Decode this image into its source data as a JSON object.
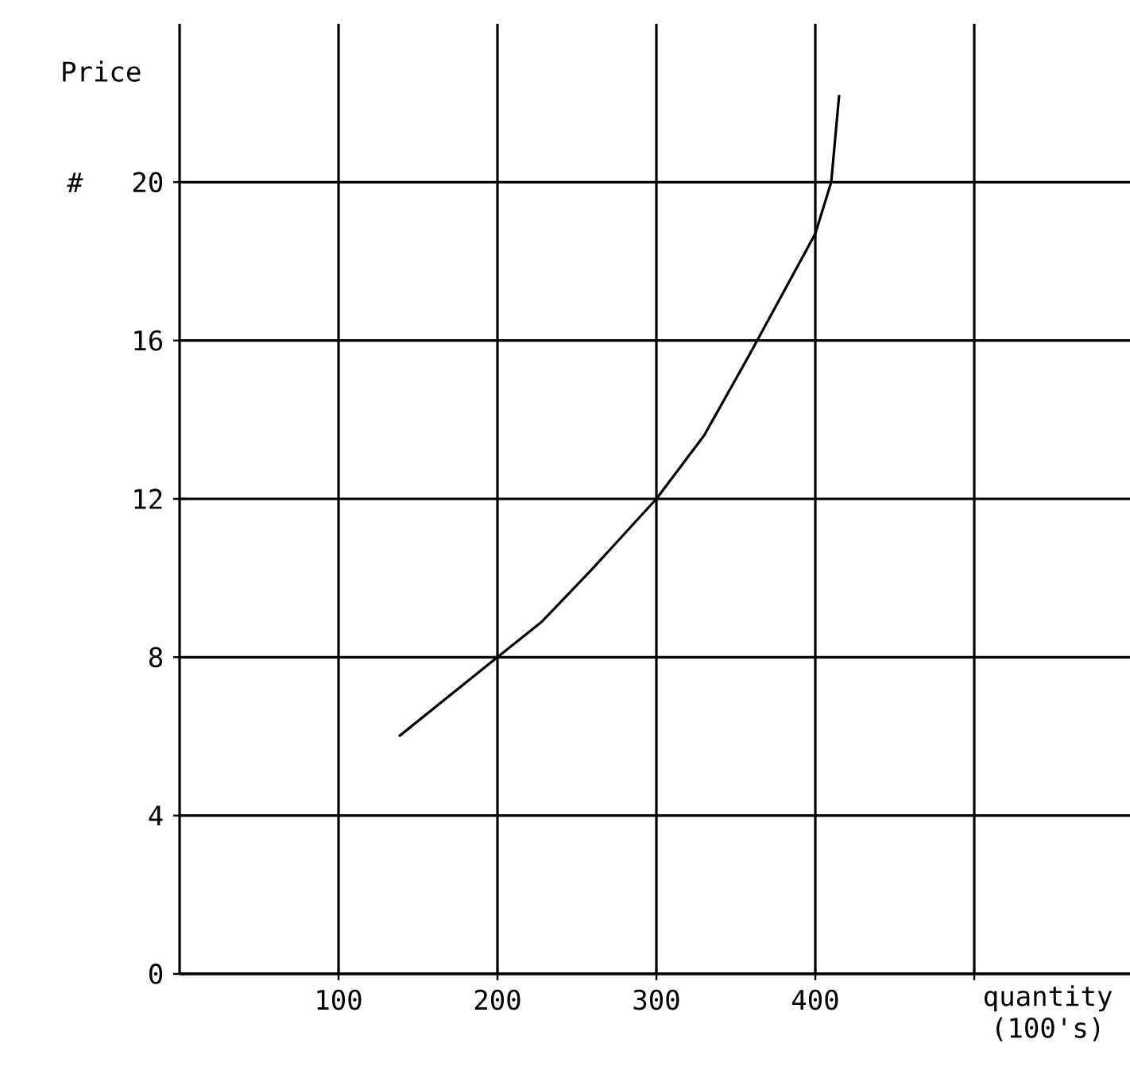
{
  "chart_data": {
    "type": "line",
    "xlabel": "quantity (100's)",
    "ylabel": "Price",
    "annotations": [
      "#"
    ],
    "x": [
      138,
      200,
      228,
      259,
      300,
      330,
      358,
      400,
      410,
      415
    ],
    "values": [
      6.0,
      8.0,
      8.9,
      10.2,
      12.0,
      13.6,
      15.6,
      18.7,
      20.0,
      22.2
    ],
    "color": "#000000",
    "grid": true,
    "xlim": [
      0,
      598
    ],
    "ylim": [
      0,
      24
    ],
    "xticks": [
      100,
      200,
      300,
      400,
      {
        "value": 500,
        "label": null
      }
    ],
    "yticks": [
      0,
      4,
      8,
      12,
      16,
      20
    ]
  }
}
